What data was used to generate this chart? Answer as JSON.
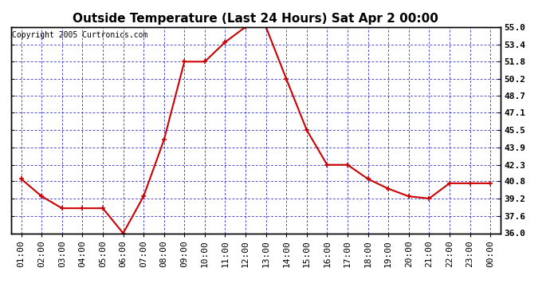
{
  "title": "Outside Temperature (Last 24 Hours) Sat Apr 2 00:00",
  "copyright": "Copyright 2005 Curtronics.com",
  "x_labels": [
    "01:00",
    "02:00",
    "03:00",
    "04:00",
    "05:00",
    "06:00",
    "07:00",
    "08:00",
    "09:00",
    "10:00",
    "11:00",
    "12:00",
    "13:00",
    "14:00",
    "15:00",
    "16:00",
    "17:00",
    "18:00",
    "19:00",
    "20:00",
    "21:00",
    "22:00",
    "23:00",
    "00:00"
  ],
  "y_values": [
    41.0,
    39.4,
    38.3,
    38.3,
    38.3,
    36.0,
    39.4,
    44.6,
    51.8,
    51.8,
    53.6,
    55.0,
    55.0,
    50.2,
    45.5,
    42.3,
    42.3,
    41.0,
    40.1,
    39.4,
    39.2,
    40.6,
    40.6,
    40.6
  ],
  "y_ticks": [
    36.0,
    37.6,
    39.2,
    40.8,
    42.3,
    43.9,
    45.5,
    47.1,
    48.7,
    50.2,
    51.8,
    53.4,
    55.0
  ],
  "y_min": 36.0,
  "y_max": 55.0,
  "line_color": "#cc0000",
  "marker": "+",
  "marker_color": "#cc0000",
  "bg_color": "#ffffff",
  "plot_bg_color": "#ffffff",
  "grid_color": "#0000bb",
  "title_fontsize": 11,
  "copyright_fontsize": 7,
  "tick_fontsize": 8,
  "axis_label_color": "#000000"
}
